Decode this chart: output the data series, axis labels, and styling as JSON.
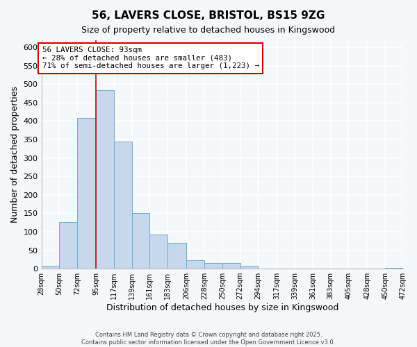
{
  "title": "56, LAVERS CLOSE, BRISTOL, BS15 9ZG",
  "subtitle": "Size of property relative to detached houses in Kingswood",
  "xlabel": "Distribution of detached houses by size in Kingswood",
  "ylabel": "Number of detached properties",
  "bin_edges": [
    28,
    50,
    72,
    95,
    117,
    139,
    161,
    183,
    206,
    228,
    250,
    272,
    294,
    317,
    339,
    361,
    383,
    405,
    428,
    450,
    472
  ],
  "bin_counts": [
    8,
    127,
    408,
    483,
    344,
    150,
    92,
    70,
    22,
    15,
    15,
    7,
    0,
    0,
    0,
    0,
    0,
    0,
    0,
    2
  ],
  "bar_color": "#c8d8ec",
  "bar_edge_color": "#6baed6",
  "vline_x": 95,
  "vline_color": "#cc0000",
  "annotation_title": "56 LAVERS CLOSE: 93sqm",
  "annotation_line1": "← 28% of detached houses are smaller (483)",
  "annotation_line2": "71% of semi-detached houses are larger (1,223) →",
  "annotation_box_color": "#cc0000",
  "ylim": [
    0,
    620
  ],
  "yticks": [
    0,
    50,
    100,
    150,
    200,
    250,
    300,
    350,
    400,
    450,
    500,
    550,
    600
  ],
  "xtick_labels": [
    "28sqm",
    "50sqm",
    "72sqm",
    "95sqm",
    "117sqm",
    "139sqm",
    "161sqm",
    "183sqm",
    "206sqm",
    "228sqm",
    "250sqm",
    "272sqm",
    "294sqm",
    "317sqm",
    "339sqm",
    "361sqm",
    "383sqm",
    "405sqm",
    "428sqm",
    "450sqm",
    "472sqm"
  ],
  "footer1": "Contains HM Land Registry data © Crown copyright and database right 2025.",
  "footer2": "Contains public sector information licensed under the Open Government Licence v3.0.",
  "background_color": "#f5f8fb",
  "grid_color": "#ffffff",
  "title_fontsize": 11,
  "subtitle_fontsize": 9
}
